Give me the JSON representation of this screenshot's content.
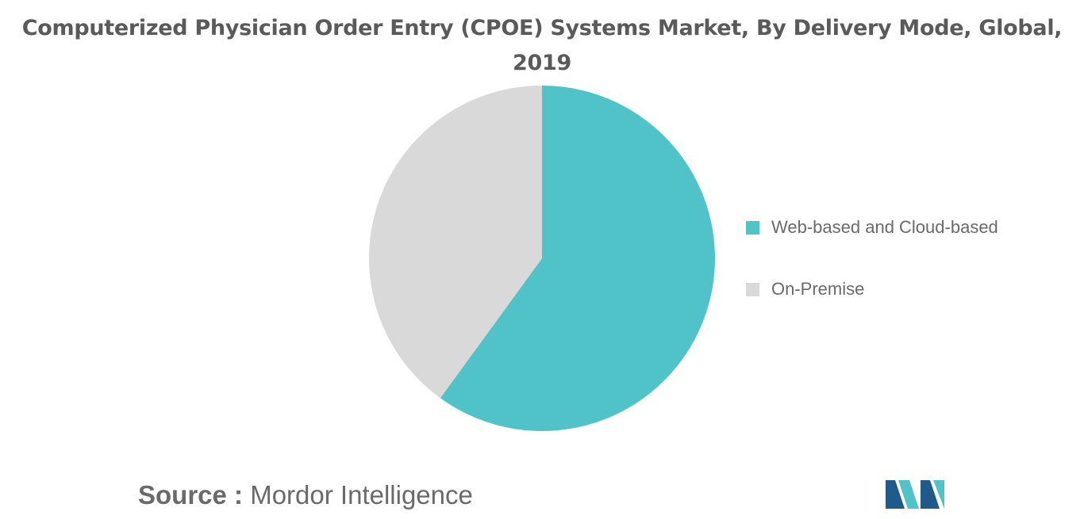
{
  "chart_data": {
    "type": "pie",
    "title": "Computerized Physician Order Entry (CPOE) Systems Market, By Delivery Mode, Global, 2019",
    "title_line1": "Computerized Physician Order Entry (CPOE) Systems Market, By Delivery Mode, Global,",
    "title_line2": "2019",
    "categories": [
      "Web-based and Cloud-based",
      "On-Premise"
    ],
    "values": [
      60,
      40
    ],
    "colors": [
      "#50c3c8",
      "#d9d9d9"
    ],
    "start_angle_deg": 0,
    "direction": "clockwise",
    "legend_position": "right"
  },
  "source": {
    "label": "Source :",
    "text": "Mordor Intelligence"
  },
  "logo": {
    "icon": "mordor-intelligence-logo",
    "colors": [
      "#1f5a8a",
      "#4fc3c8"
    ]
  }
}
